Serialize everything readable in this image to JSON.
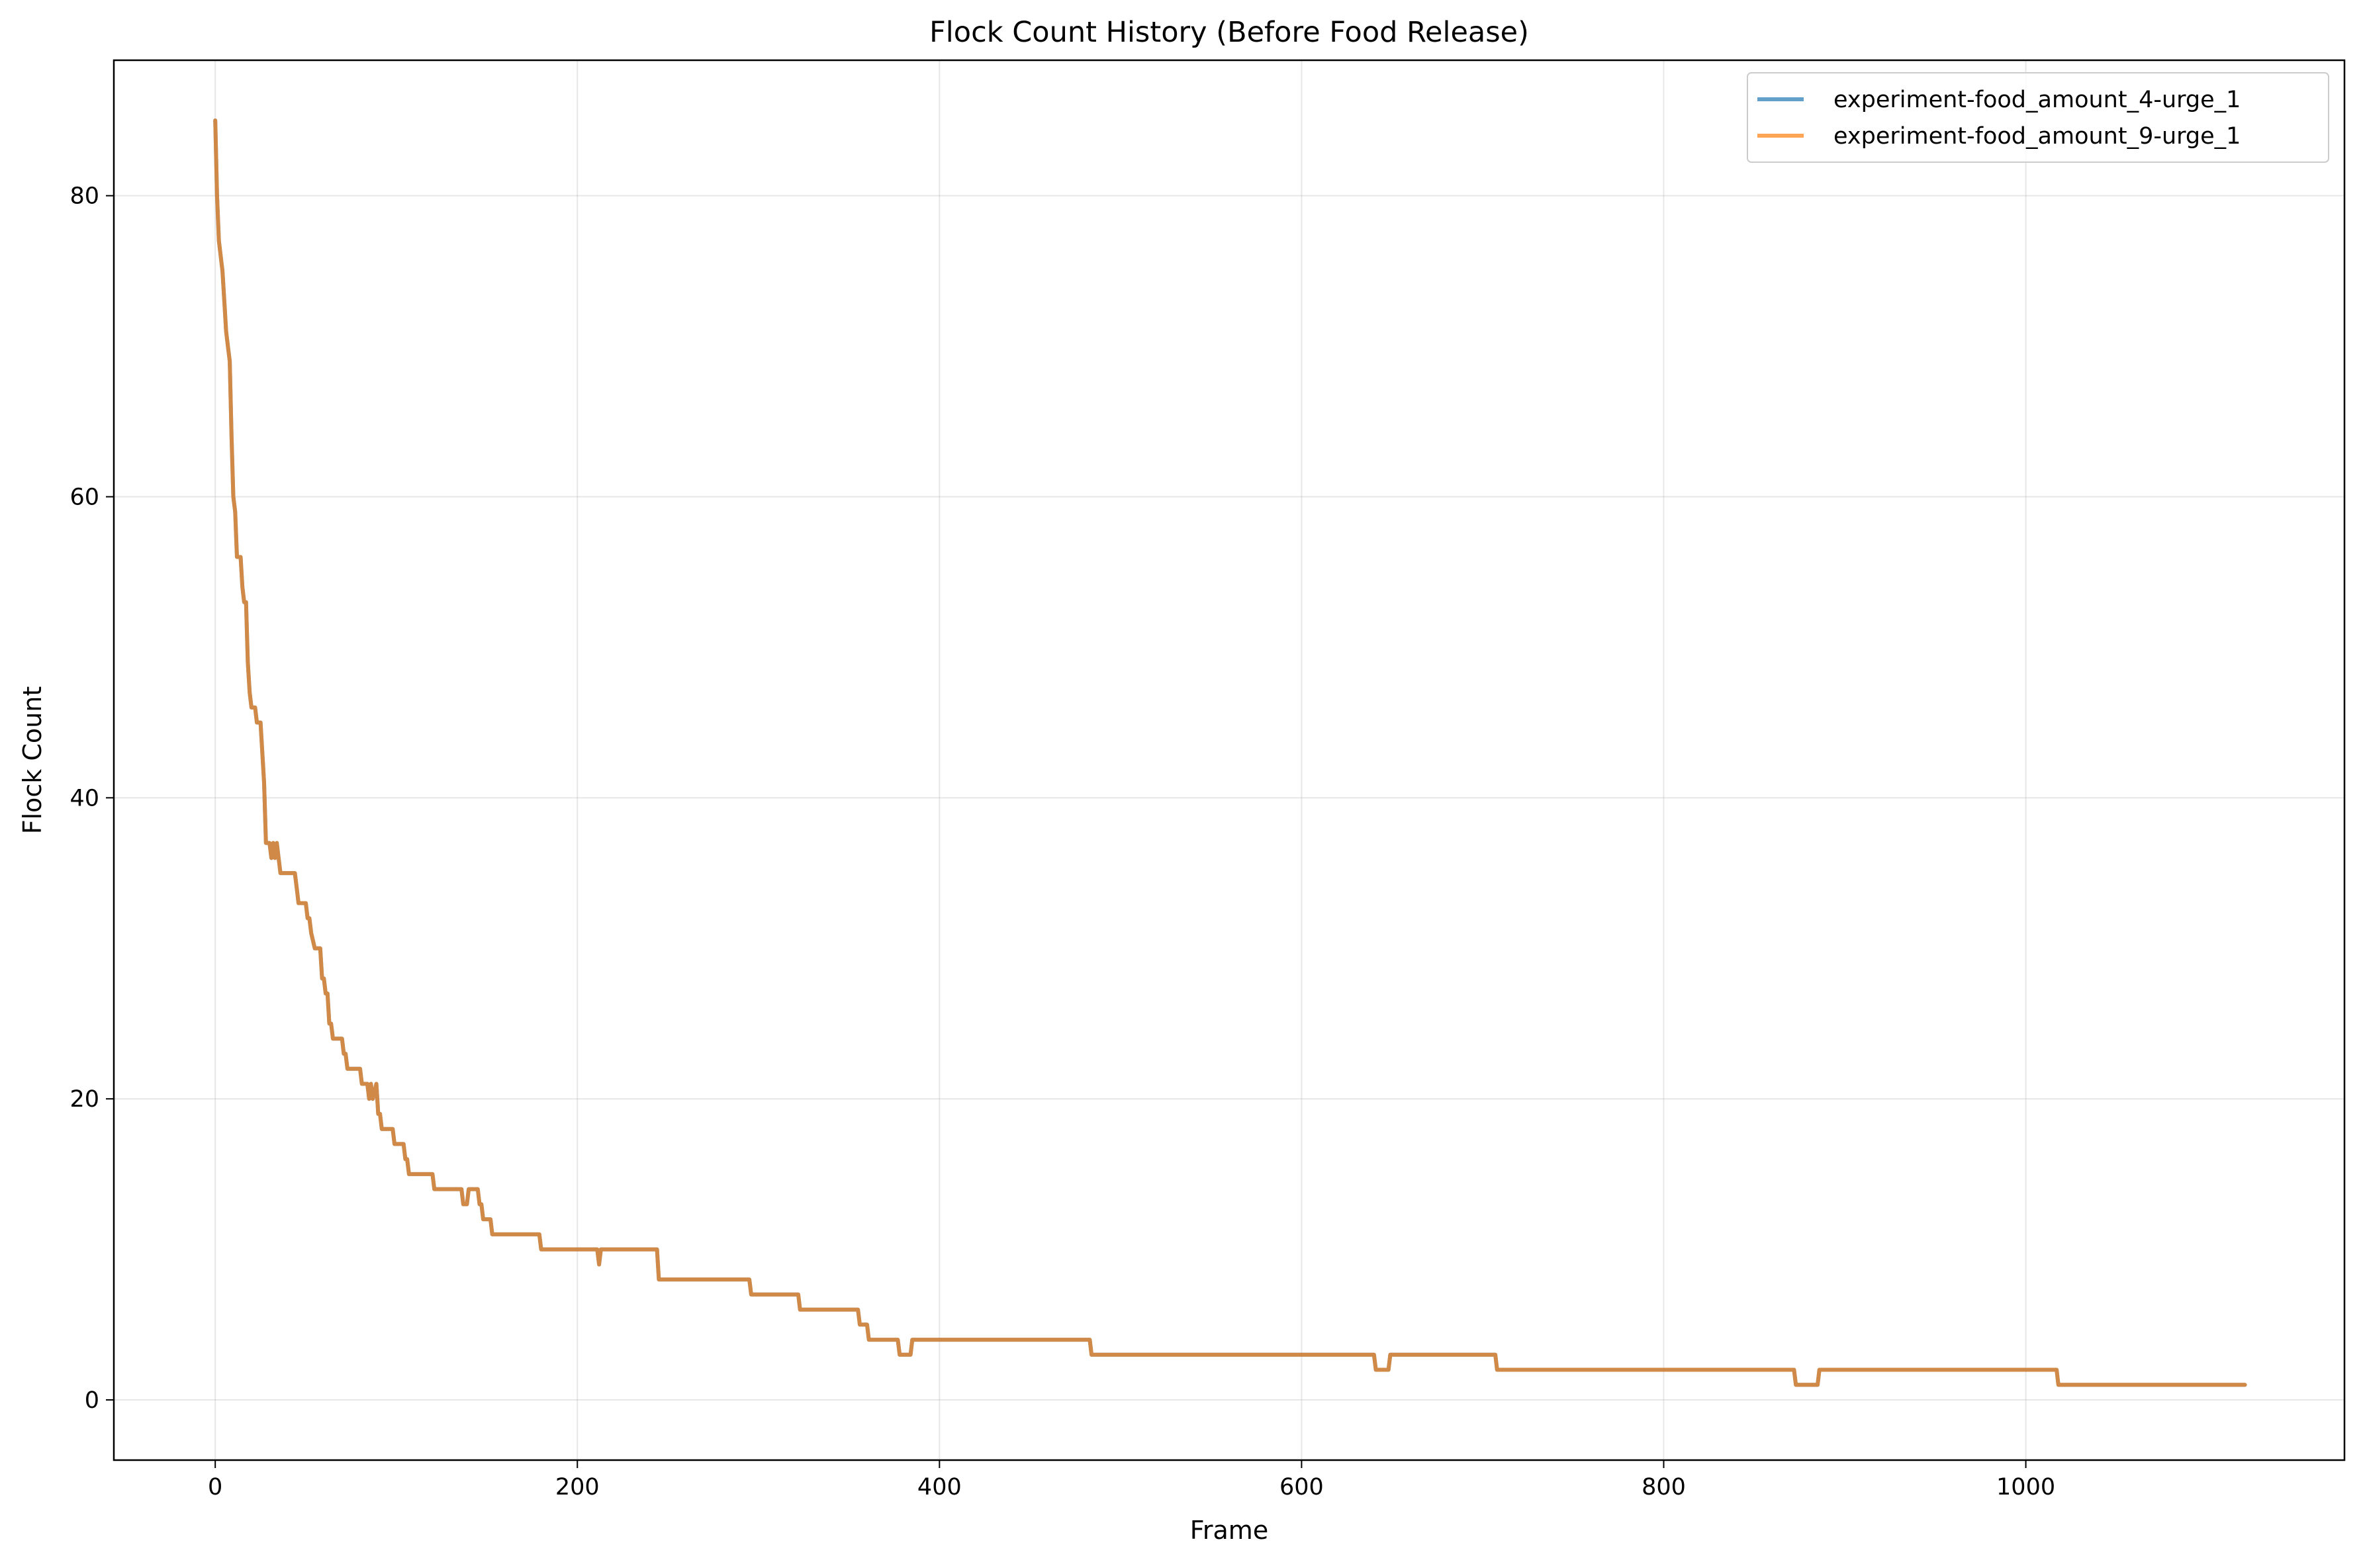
{
  "chart_data": {
    "type": "line",
    "title": "Flock Count History (Before Food Release)",
    "xlabel": "Frame",
    "ylabel": "Flock Count",
    "xlim": [
      -56,
      1176
    ],
    "ylim": [
      -4,
      89
    ],
    "xticks": [
      0,
      200,
      400,
      600,
      800,
      1000
    ],
    "yticks": [
      0,
      20,
      40,
      60,
      80
    ],
    "grid": true,
    "legend_position": "top-right",
    "series": [
      {
        "name": "experiment-food_amount_4-urge_1",
        "color": "#1f77b4",
        "points": [
          [
            0,
            85
          ],
          [
            1,
            80
          ],
          [
            2,
            77
          ],
          [
            3,
            76
          ],
          [
            4,
            75
          ],
          [
            5,
            73
          ],
          [
            6,
            71
          ],
          [
            7,
            70
          ],
          [
            8,
            69
          ],
          [
            9,
            64
          ],
          [
            10,
            60
          ],
          [
            11,
            59
          ],
          [
            12,
            56
          ],
          [
            14,
            56
          ],
          [
            15,
            54
          ],
          [
            16,
            53
          ],
          [
            17,
            53
          ],
          [
            18,
            49
          ],
          [
            19,
            47
          ],
          [
            20,
            46
          ],
          [
            22,
            46
          ],
          [
            23,
            45
          ],
          [
            25,
            45
          ],
          [
            26,
            43
          ],
          [
            27,
            41
          ],
          [
            28,
            37
          ],
          [
            30,
            37
          ],
          [
            31,
            36
          ],
          [
            32,
            37
          ],
          [
            33,
            36
          ],
          [
            34,
            37
          ],
          [
            35,
            36
          ],
          [
            36,
            35
          ],
          [
            44,
            35
          ],
          [
            45,
            34
          ],
          [
            46,
            33
          ],
          [
            50,
            33
          ],
          [
            51,
            32
          ],
          [
            52,
            32
          ],
          [
            53,
            31
          ],
          [
            55,
            30
          ],
          [
            58,
            30
          ],
          [
            59,
            28
          ],
          [
            60,
            28
          ],
          [
            61,
            27
          ],
          [
            62,
            27
          ],
          [
            63,
            25
          ],
          [
            64,
            25
          ],
          [
            65,
            24
          ],
          [
            70,
            24
          ],
          [
            71,
            23
          ],
          [
            72,
            23
          ],
          [
            73,
            22
          ],
          [
            80,
            22
          ],
          [
            81,
            21
          ],
          [
            84,
            21
          ],
          [
            85,
            20
          ],
          [
            86,
            21
          ],
          [
            87,
            20
          ],
          [
            89,
            21
          ],
          [
            90,
            19
          ],
          [
            91,
            19
          ],
          [
            92,
            18
          ],
          [
            98,
            18
          ],
          [
            99,
            17
          ],
          [
            104,
            17
          ],
          [
            105,
            16
          ],
          [
            106,
            16
          ],
          [
            107,
            15
          ],
          [
            120,
            15
          ],
          [
            121,
            14
          ],
          [
            136,
            14
          ],
          [
            137,
            13
          ],
          [
            139,
            13
          ],
          [
            140,
            14
          ],
          [
            145,
            14
          ],
          [
            146,
            13
          ],
          [
            147,
            13
          ],
          [
            148,
            12
          ],
          [
            152,
            12
          ],
          [
            153,
            11
          ],
          [
            179,
            11
          ],
          [
            180,
            10
          ],
          [
            211,
            10
          ],
          [
            212,
            9
          ],
          [
            213,
            10
          ],
          [
            244,
            10
          ],
          [
            245,
            8
          ],
          [
            295,
            8
          ],
          [
            296,
            7
          ],
          [
            322,
            7
          ],
          [
            323,
            6
          ],
          [
            355,
            6
          ],
          [
            356,
            5
          ],
          [
            360,
            5
          ],
          [
            361,
            4
          ],
          [
            377,
            4
          ],
          [
            378,
            3
          ],
          [
            384,
            3
          ],
          [
            385,
            4
          ],
          [
            483,
            4
          ],
          [
            484,
            3
          ],
          [
            640,
            3
          ],
          [
            641,
            2
          ],
          [
            648,
            2
          ],
          [
            649,
            3
          ],
          [
            707,
            3
          ],
          [
            708,
            2
          ],
          [
            872,
            2
          ],
          [
            873,
            1
          ],
          [
            885,
            1
          ],
          [
            886,
            2
          ],
          [
            1017,
            2
          ],
          [
            1018,
            1
          ],
          [
            1121,
            1
          ]
        ]
      },
      {
        "name": "experiment-food_amount_9-urge_1",
        "color": "#ff7f0e",
        "points": [
          [
            0,
            85
          ],
          [
            1,
            80
          ],
          [
            2,
            77
          ],
          [
            3,
            76
          ],
          [
            4,
            75
          ],
          [
            5,
            73
          ],
          [
            6,
            71
          ],
          [
            7,
            70
          ],
          [
            8,
            69
          ],
          [
            9,
            64
          ],
          [
            10,
            60
          ],
          [
            11,
            59
          ],
          [
            12,
            56
          ],
          [
            14,
            56
          ],
          [
            15,
            54
          ],
          [
            16,
            53
          ],
          [
            17,
            53
          ],
          [
            18,
            49
          ],
          [
            19,
            47
          ],
          [
            20,
            46
          ],
          [
            22,
            46
          ],
          [
            23,
            45
          ],
          [
            25,
            45
          ],
          [
            26,
            43
          ],
          [
            27,
            41
          ],
          [
            28,
            37
          ],
          [
            30,
            37
          ],
          [
            31,
            36
          ],
          [
            32,
            37
          ],
          [
            33,
            36
          ],
          [
            34,
            37
          ],
          [
            35,
            36
          ],
          [
            36,
            35
          ],
          [
            44,
            35
          ],
          [
            45,
            34
          ],
          [
            46,
            33
          ],
          [
            50,
            33
          ],
          [
            51,
            32
          ],
          [
            52,
            32
          ],
          [
            53,
            31
          ],
          [
            55,
            30
          ],
          [
            58,
            30
          ],
          [
            59,
            28
          ],
          [
            60,
            28
          ],
          [
            61,
            27
          ],
          [
            62,
            27
          ],
          [
            63,
            25
          ],
          [
            64,
            25
          ],
          [
            65,
            24
          ],
          [
            70,
            24
          ],
          [
            71,
            23
          ],
          [
            72,
            23
          ],
          [
            73,
            22
          ],
          [
            80,
            22
          ],
          [
            81,
            21
          ],
          [
            84,
            21
          ],
          [
            85,
            20
          ],
          [
            86,
            21
          ],
          [
            87,
            20
          ],
          [
            89,
            21
          ],
          [
            90,
            19
          ],
          [
            91,
            19
          ],
          [
            92,
            18
          ],
          [
            98,
            18
          ],
          [
            99,
            17
          ],
          [
            104,
            17
          ],
          [
            105,
            16
          ],
          [
            106,
            16
          ],
          [
            107,
            15
          ],
          [
            120,
            15
          ],
          [
            121,
            14
          ],
          [
            136,
            14
          ],
          [
            137,
            13
          ],
          [
            139,
            13
          ],
          [
            140,
            14
          ],
          [
            145,
            14
          ],
          [
            146,
            13
          ],
          [
            147,
            13
          ],
          [
            148,
            12
          ],
          [
            152,
            12
          ],
          [
            153,
            11
          ],
          [
            179,
            11
          ],
          [
            180,
            10
          ],
          [
            211,
            10
          ],
          [
            212,
            9
          ],
          [
            213,
            10
          ],
          [
            244,
            10
          ],
          [
            245,
            8
          ],
          [
            295,
            8
          ],
          [
            296,
            7
          ],
          [
            322,
            7
          ],
          [
            323,
            6
          ],
          [
            355,
            6
          ],
          [
            356,
            5
          ],
          [
            360,
            5
          ],
          [
            361,
            4
          ],
          [
            377,
            4
          ],
          [
            378,
            3
          ],
          [
            384,
            3
          ],
          [
            385,
            4
          ],
          [
            483,
            4
          ],
          [
            484,
            3
          ],
          [
            640,
            3
          ],
          [
            641,
            2
          ],
          [
            648,
            2
          ],
          [
            649,
            3
          ],
          [
            707,
            3
          ],
          [
            708,
            2
          ],
          [
            872,
            2
          ],
          [
            873,
            1
          ],
          [
            885,
            1
          ],
          [
            886,
            2
          ],
          [
            1017,
            2
          ],
          [
            1018,
            1
          ],
          [
            1121,
            1
          ]
        ]
      }
    ]
  }
}
